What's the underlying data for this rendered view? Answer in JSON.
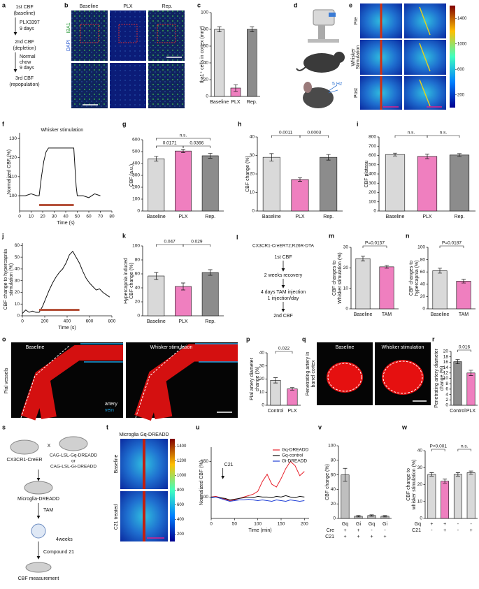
{
  "panels": {
    "a": {
      "label": "a",
      "lines": [
        "1st CBF",
        "(baseline)",
        "PLX3397",
        "9 days",
        "2nd CBF",
        "(depletion)",
        "Normal",
        "chow",
        "9 days",
        "3rd CBF",
        "(repopulation)"
      ]
    },
    "b": {
      "label": "b",
      "columns": [
        "Baseline",
        "PLX",
        "Rep."
      ],
      "stain": [
        "IBA1",
        "DAPI"
      ]
    },
    "d": {
      "label": "d",
      "frequency": "5 Hz"
    },
    "e": {
      "label": "e",
      "rows": [
        [
          "Pre"
        ],
        [
          "Whisker",
          "Stimulation"
        ],
        [
          "Post"
        ]
      ],
      "colorbar": [
        1400,
        1000,
        600,
        200
      ]
    },
    "l": {
      "label": "l",
      "lines": [
        "CX3CR1-CreERT2;R26R-DTA",
        "1st CBF",
        "2 weeks recovery",
        "4 days TAM injection",
        "1 injection/day",
        "2nd CBF"
      ]
    },
    "o": {
      "label": "o",
      "side": "Pial vessels",
      "columns": [
        "Baseline",
        "Whisker stimulation"
      ],
      "legend": [
        "artery",
        "vein"
      ]
    },
    "q": {
      "label": "q",
      "side": [
        "Penetrating artery in",
        "barrel cortex"
      ],
      "columns": [
        "Baseline",
        "Whisker stimulation"
      ]
    },
    "s": {
      "label": "s",
      "texts": [
        "CX3CR1-CreER",
        "X",
        "CAG-LSL-Gq-DREADD",
        "or",
        "CAG-LSL-Gi-DREADD",
        "Microglia-DREADD",
        "TAM",
        "4weeks",
        "Compound 21",
        "CBF measurement"
      ]
    },
    "t": {
      "label": "t",
      "title": "Microglia Gq-DREADD",
      "rows": [
        "Baseline",
        "C21 treated"
      ],
      "colorbar": [
        1400,
        1200,
        1000,
        800,
        600,
        400,
        200
      ]
    }
  },
  "chart_data": [
    {
      "type": "bar",
      "panel": "c",
      "ylabel": "Iba1⁺ cells in cortex (mm²)",
      "categories": [
        "Baseline",
        "PLX",
        "Rep."
      ],
      "values": [
        80,
        10,
        80
      ],
      "errors": [
        3,
        4,
        3
      ],
      "colors": [
        "#d9d9d9",
        "#ef7fbf",
        "#8c8c8c"
      ],
      "ylim": [
        0,
        100
      ],
      "yticks": [
        0,
        20,
        40,
        60,
        80,
        100
      ]
    },
    {
      "type": "line",
      "panel": "f",
      "xlabel": "Time (s)",
      "ylabel": "Normalized CBF (%)",
      "x": [
        0,
        5,
        10,
        15,
        17,
        19,
        21,
        23,
        25,
        30,
        35,
        40,
        45,
        47,
        48,
        49,
        50,
        55,
        60,
        65,
        70
      ],
      "series": [
        {
          "color": "#111111",
          "values": [
            100,
            100,
            101,
            100,
            100,
            110,
            118,
            123,
            125,
            125,
            125,
            125,
            125,
            125,
            115,
            105,
            100,
            100,
            99,
            101,
            100
          ]
        }
      ],
      "stimulus": {
        "label": "Whisker stimulation",
        "start": 17,
        "end": 47,
        "color": "#b5523b"
      },
      "xlim": [
        0,
        80
      ],
      "xticks": [
        0,
        10,
        20,
        30,
        40,
        50,
        60,
        70,
        80
      ],
      "ylim": [
        92,
        133
      ],
      "yticks": [
        100,
        110,
        120,
        130
      ]
    },
    {
      "type": "bar",
      "panel": "g",
      "ylabel": "CBF (a.u.)",
      "categories": [
        "Baseline",
        "PLX",
        "Rep."
      ],
      "values": [
        440,
        505,
        465
      ],
      "errors": [
        20,
        14,
        20
      ],
      "colors": [
        "#d9d9d9",
        "#ef7fbf",
        "#8c8c8c"
      ],
      "ylim": [
        0,
        600
      ],
      "yticks": [
        0,
        100,
        200,
        300,
        400,
        500,
        600
      ],
      "comparisons": [
        "n.s.",
        "0.0171",
        "0.0366"
      ]
    },
    {
      "type": "bar",
      "panel": "h",
      "ylabel": "CBF change (%)",
      "categories": [
        "Baseline",
        "PLX",
        "Rep."
      ],
      "values": [
        29,
        17,
        29
      ],
      "errors": [
        2,
        1,
        1.5
      ],
      "colors": [
        "#d9d9d9",
        "#ef7fbf",
        "#8c8c8c"
      ],
      "ylim": [
        0,
        40
      ],
      "yticks": [
        0,
        10,
        20,
        30,
        40
      ],
      "comparisons": [
        "0.0011",
        "0.0003"
      ]
    },
    {
      "type": "bar",
      "panel": "i",
      "ylabel": "CBF plateau",
      "categories": [
        "Baseline",
        "PLX",
        "Rep."
      ],
      "values": [
        610,
        590,
        605
      ],
      "errors": [
        15,
        25,
        15
      ],
      "colors": [
        "#d9d9d9",
        "#ef7fbf",
        "#8c8c8c"
      ],
      "ylim": [
        0,
        800
      ],
      "yticks": [
        0,
        100,
        200,
        300,
        400,
        500,
        600,
        700,
        800
      ],
      "comparisons": [
        "n.s.",
        "n.s."
      ]
    },
    {
      "type": "line",
      "panel": "j",
      "xlabel": "Time (s)",
      "ylabel": [
        "CBF change to hypercapnia",
        "stimulation (%)"
      ],
      "x": [
        0,
        30,
        60,
        90,
        120,
        150,
        180,
        210,
        240,
        270,
        300,
        330,
        360,
        390,
        420,
        450,
        480,
        510,
        540,
        570,
        600,
        630,
        660,
        690,
        720,
        750,
        780
      ],
      "series": [
        {
          "color": "#111111",
          "values": [
            2,
            5,
            3,
            4,
            3,
            3,
            8,
            15,
            22,
            28,
            33,
            37,
            40,
            45,
            52,
            55,
            50,
            45,
            38,
            32,
            28,
            25,
            22,
            23,
            20,
            18,
            16
          ]
        }
      ],
      "stimulus": {
        "start": 150,
        "end": 510,
        "color": "#b5523b"
      },
      "xlim": [
        0,
        800
      ],
      "xticks": [
        0,
        200,
        400,
        600,
        800
      ],
      "ylim": [
        0,
        62
      ],
      "yticks": [
        0,
        10,
        20,
        30,
        40,
        50,
        60
      ]
    },
    {
      "type": "bar",
      "panel": "k",
      "ylabel": [
        "Hypercapnia induced",
        "CBF change (%)"
      ],
      "categories": [
        "Baseline",
        "PLX",
        "Rep."
      ],
      "values": [
        57,
        42,
        62
      ],
      "errors": [
        5,
        5,
        4
      ],
      "colors": [
        "#d9d9d9",
        "#ef7fbf",
        "#8c8c8c"
      ],
      "ylim": [
        0,
        100
      ],
      "yticks": [
        0,
        20,
        40,
        60,
        80,
        100
      ],
      "comparisons": [
        "0.047",
        "0.029"
      ]
    },
    {
      "type": "bar",
      "panel": "m",
      "ylabel": [
        "CBF changes to",
        "Whisker stimulation (%)"
      ],
      "categories": [
        "Baseline",
        "TAM"
      ],
      "values": [
        24.5,
        20.5
      ],
      "errors": [
        1.2,
        0.7
      ],
      "colors": [
        "#d9d9d9",
        "#ef7fbf"
      ],
      "ylim": [
        0,
        30
      ],
      "yticks": [
        0,
        10,
        20,
        30
      ],
      "comparisons": [
        "P=0.0157"
      ]
    },
    {
      "type": "bar",
      "panel": "n",
      "ylabel": [
        "CBF changes to",
        "hypercapnia (%)"
      ],
      "categories": [
        "Baseline",
        "TAM"
      ],
      "values": [
        62,
        45
      ],
      "errors": [
        4,
        3
      ],
      "colors": [
        "#d9d9d9",
        "#ef7fbf"
      ],
      "ylim": [
        0,
        100
      ],
      "yticks": [
        0,
        20,
        40,
        60,
        80,
        100
      ],
      "comparisons": [
        "P=0.0187"
      ]
    },
    {
      "type": "bar",
      "panel": "p",
      "ylabel": [
        "Pial artery diameter",
        "change (%)"
      ],
      "categories": [
        "Control",
        "PLX"
      ],
      "values": [
        19,
        12.5
      ],
      "errors": [
        2,
        1
      ],
      "colors": [
        "#d9d9d9",
        "#ef7fbf"
      ],
      "ylim": [
        0,
        40
      ],
      "yticks": [
        0,
        10,
        20,
        30,
        40
      ],
      "comparisons": [
        "0.022"
      ]
    },
    {
      "type": "bar",
      "panel": "r",
      "ylabel": [
        "Penetrating artery diameter",
        "change (%)"
      ],
      "categories": [
        "Control",
        "PLX"
      ],
      "values": [
        16.2,
        12
      ],
      "errors": [
        0.8,
        1
      ],
      "colors": [
        "#8c8c8c",
        "#ef7fbf"
      ],
      "ylim": [
        0,
        20
      ],
      "yticks": [
        0,
        2,
        4,
        6,
        8,
        10,
        12,
        14,
        16,
        18,
        20
      ],
      "comparisons": [
        "0.016"
      ]
    },
    {
      "type": "line",
      "panel": "u",
      "xlabel": "Time (min)",
      "ylabel": "Normalized CBF (%)",
      "x": [
        0,
        10,
        20,
        30,
        40,
        50,
        60,
        70,
        80,
        90,
        100,
        110,
        120,
        130,
        140,
        150,
        160,
        170,
        180,
        190,
        200
      ],
      "series": [
        {
          "name": "Gq-DREADD",
          "color": "#e8202a",
          "values": [
            100,
            101,
            99,
            97,
            95,
            96,
            98,
            100,
            102,
            104,
            108,
            122,
            132,
            118,
            114,
            126,
            140,
            150,
            144,
            130,
            136
          ]
        },
        {
          "name": "Gq-control",
          "color": "#111111",
          "values": [
            100,
            100,
            99,
            98,
            96,
            97,
            98,
            99,
            100,
            99,
            101,
            100,
            100,
            99,
            101,
            100,
            102,
            100,
            99,
            101,
            100
          ]
        },
        {
          "name": "Gi-DREADD",
          "color": "#1f3fd6",
          "values": [
            99,
            100,
            98,
            96,
            94,
            95,
            96,
            96,
            97,
            96,
            95,
            96,
            95,
            94,
            96,
            95,
            94,
            96,
            95,
            94,
            95
          ]
        }
      ],
      "annotations": [
        {
          "text": "C21",
          "x": 25
        }
      ],
      "xlim": [
        0,
        210
      ],
      "xticks": [
        0,
        50,
        100,
        150,
        200
      ],
      "ylim": [
        70,
        170
      ],
      "yticks": [
        100,
        150
      ]
    },
    {
      "type": "bar",
      "panel": "v",
      "ylabel": "CBF change (%)",
      "categories": [
        "Gq",
        "Gi",
        "Gq",
        "Gi"
      ],
      "rows": [
        {
          "name": "Cre",
          "values": [
            "+",
            "+",
            "-",
            "-"
          ]
        },
        {
          "name": "C21",
          "values": [
            "+",
            "+",
            "+",
            "+"
          ]
        }
      ],
      "values": [
        60,
        3,
        4,
        3
      ],
      "errors": [
        9,
        1,
        1,
        1
      ],
      "colors": [
        "#bfbfbf",
        "#bfbfbf",
        "#bfbfbf",
        "#bfbfbf"
      ],
      "ylim": [
        0,
        100
      ],
      "yticks": [
        0,
        20,
        40,
        60,
        80,
        100
      ]
    },
    {
      "type": "bar",
      "panel": "w",
      "ylabel": [
        "CBF change to",
        "whisker stimulation (%)"
      ],
      "rows": [
        {
          "name": "Gq",
          "values": [
            "+",
            "+",
            "-",
            "-"
          ]
        },
        {
          "name": "C21",
          "values": [
            "-",
            "+",
            "-",
            "+"
          ]
        }
      ],
      "values": [
        26,
        22,
        26,
        27
      ],
      "errors": [
        1,
        1.2,
        1,
        1
      ],
      "colors": [
        "#d9d9d9",
        "#ef7fbf",
        "#d9d9d9",
        "#d9d9d9"
      ],
      "ylim": [
        0,
        40
      ],
      "yticks": [
        0,
        10,
        20,
        30,
        40
      ],
      "comparisons": [
        "P<0.001",
        "n.s."
      ]
    }
  ]
}
